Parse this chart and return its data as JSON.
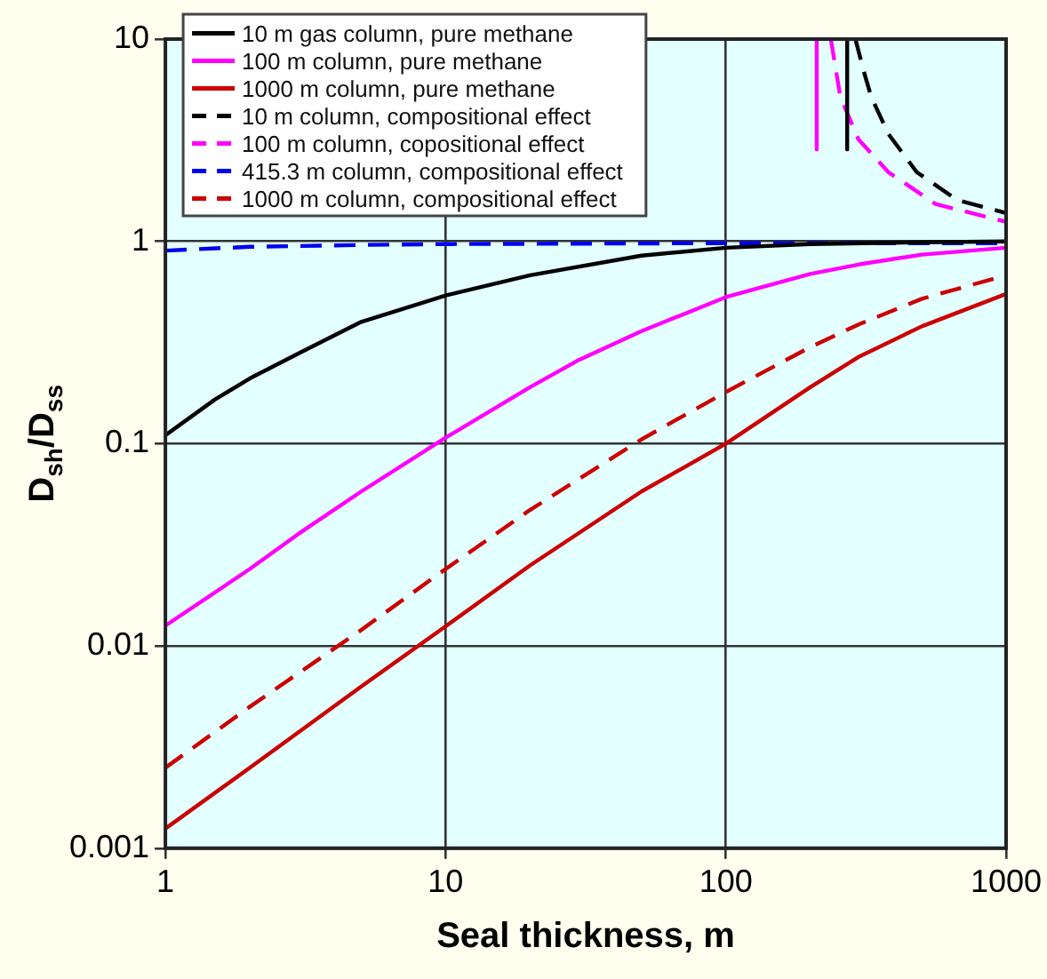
{
  "chart_data": {
    "type": "line",
    "xlabel": "Seal thickness, m",
    "ylabel": "D$_{sh}$/D$_{ss}$",
    "log": "xy",
    "xlim": [
      1,
      1000
    ],
    "xticks": [
      1,
      10,
      100,
      1000
    ],
    "ylim": [
      0.001,
      10
    ],
    "yticks": [
      0.001,
      0.01,
      0.1,
      1,
      10
    ],
    "grid": true,
    "legend": "top left",
    "marker": "none",
    "series": [
      {
        "name": "10 m gas column, pure methane",
        "color": "#000000",
        "line_style": "solid",
        "x": [
          1,
          1.5,
          2,
          3,
          5,
          10,
          20,
          50,
          100,
          200,
          500,
          1000
        ],
        "values": [
          0.11,
          0.165,
          0.21,
          0.28,
          0.4,
          0.54,
          0.68,
          0.85,
          0.93,
          0.97,
          0.99,
          1.0
        ]
      },
      {
        "color": "#000000",
        "line_style": "solid",
        "x": [
          271,
          271
        ],
        "values": [
          10,
          2.85
        ]
      },
      {
        "name": "100 m column, pure methane",
        "color": "#ff00ff",
        "line_style": "solid",
        "x": [
          1,
          2,
          3,
          5,
          10,
          20,
          30,
          50,
          100,
          200,
          300,
          500,
          1000
        ],
        "values": [
          0.0126,
          0.024,
          0.036,
          0.058,
          0.107,
          0.19,
          0.26,
          0.36,
          0.53,
          0.69,
          0.77,
          0.86,
          0.93
        ]
      },
      {
        "color": "#ff00ff",
        "line_style": "solid",
        "x": [
          211,
          211
        ],
        "values": [
          10,
          2.85
        ]
      },
      {
        "name": "1000 m column, pure methane",
        "color": "#cc0000",
        "line_style": "solid",
        "x": [
          1,
          2,
          5,
          10,
          20,
          50,
          100,
          200,
          300,
          500,
          1000
        ],
        "values": [
          0.00125,
          0.0025,
          0.0063,
          0.0125,
          0.025,
          0.058,
          0.1,
          0.19,
          0.27,
          0.38,
          0.55
        ]
      },
      {
        "name": "10 m column, compositional effect",
        "color": "#000000",
        "line_style": "dashed",
        "x": [
          290,
          310,
          330,
          380,
          480,
          670,
          1000
        ],
        "values": [
          10,
          7,
          5.2,
          3.4,
          2.2,
          1.6,
          1.38
        ]
      },
      {
        "name": "100 m column, copositional effect",
        "color": "#ff00ff",
        "line_style": "dashed",
        "x": [
          237,
          256,
          297,
          380,
          560,
          1000
        ],
        "values": [
          10,
          5.2,
          3.2,
          2.2,
          1.53,
          1.25
        ]
      },
      {
        "name": "415.3 m column, compositional effect",
        "color": "#0000ee",
        "line_style": "dashed",
        "x": [
          1,
          2,
          5,
          10,
          100,
          1000
        ],
        "values": [
          0.9,
          0.94,
          0.96,
          0.97,
          0.98,
          0.98
        ]
      },
      {
        "name": "1000 m column, compositional effect",
        "color": "#cc0000",
        "line_style": "dashed",
        "x": [
          1,
          2,
          5,
          10,
          20,
          50,
          100,
          200,
          300,
          500,
          1000
        ],
        "values": [
          0.0025,
          0.005,
          0.012,
          0.024,
          0.047,
          0.105,
          0.18,
          0.3,
          0.39,
          0.52,
          0.68
        ]
      }
    ]
  }
}
